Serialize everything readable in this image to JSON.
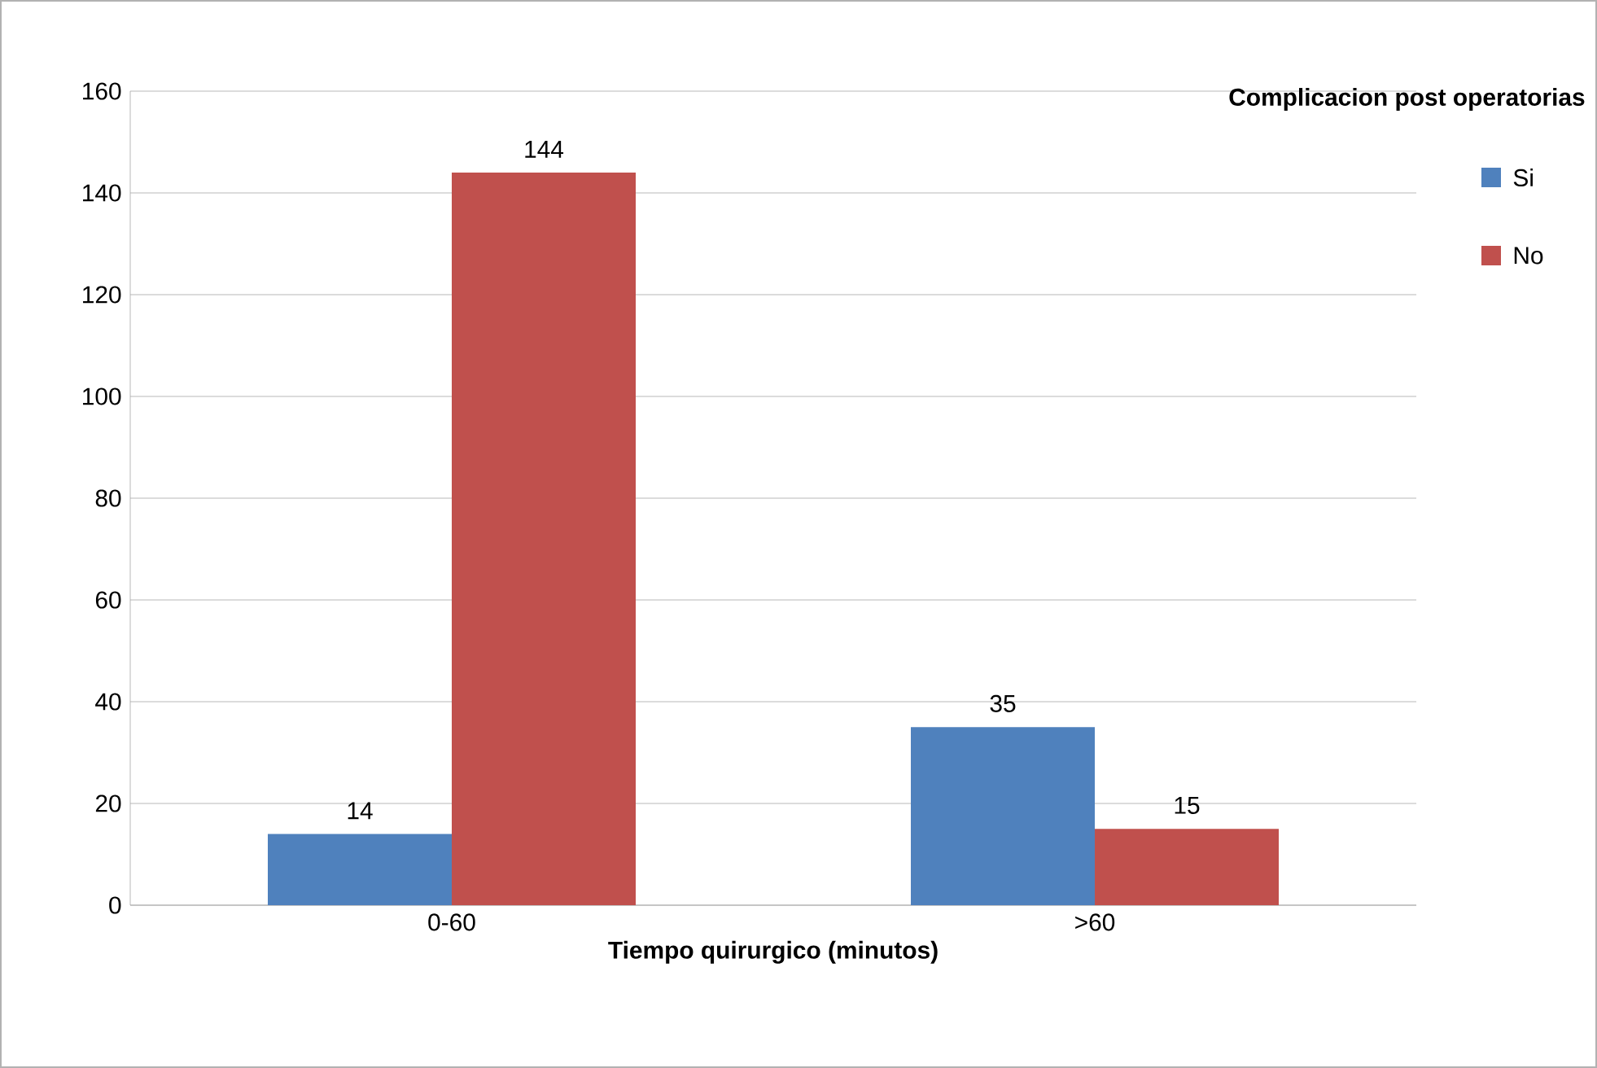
{
  "chart_data": {
    "type": "bar",
    "xlabel": "Tiempo quirurgico (minutos)",
    "legend_title": "Complicacion post operatorias",
    "categories": [
      "0-60",
      ">60"
    ],
    "series": [
      {
        "name": "Si",
        "color": "#4f81bd",
        "values": [
          14,
          35
        ]
      },
      {
        "name": "No",
        "color": "#c0504d",
        "values": [
          144,
          15
        ]
      }
    ],
    "ylim": [
      0,
      160
    ],
    "yticks": [
      0,
      20,
      40,
      60,
      80,
      100,
      120,
      140,
      160
    ],
    "grid": "y",
    "legend": "top right",
    "data_labels": true
  }
}
